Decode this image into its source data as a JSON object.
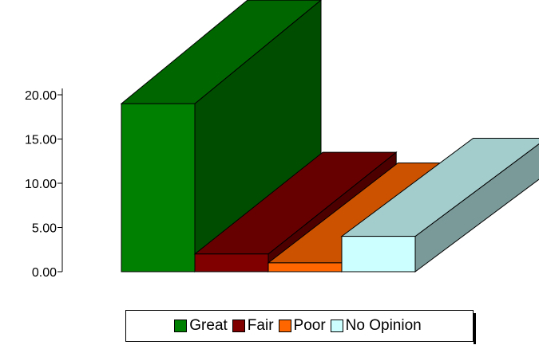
{
  "chart_data": {
    "type": "bar",
    "subtype": "3d-column",
    "categories": [
      "Great",
      "Fair",
      "Poor",
      "No Opinion"
    ],
    "values": [
      19,
      2,
      1,
      4
    ],
    "ylim": [
      0,
      20
    ],
    "yticks": [
      "0.00",
      "5.00",
      "10.00",
      "15.00",
      "20.00"
    ],
    "legend_position": "bottom",
    "grid": false,
    "colors": {
      "Great": {
        "front": "#008000",
        "side": "#004d00",
        "top": "#006600"
      },
      "Fair": {
        "front": "#800000",
        "side": "#4d0000",
        "top": "#660000"
      },
      "Poor": {
        "front": "#ff6600",
        "side": "#993d00",
        "top": "#cc5200"
      },
      "No Opinion": {
        "front": "#ccffff",
        "side": "#7a9999",
        "top": "#a3cccc"
      }
    }
  },
  "legend": {
    "items": [
      "Great",
      "Fair",
      "Poor",
      "No Opinion"
    ]
  }
}
